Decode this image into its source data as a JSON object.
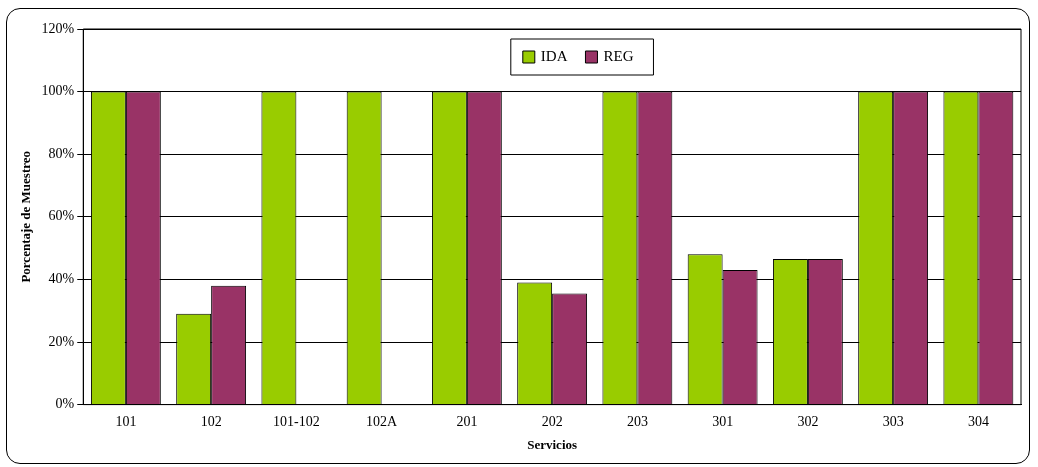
{
  "chart_data": {
    "type": "bar",
    "xlabel": "Servicios",
    "ylabel": "Porcentaje de Muestreo",
    "categories": [
      "101",
      "102",
      "101-102",
      "102A",
      "201",
      "202",
      "203",
      "301",
      "302",
      "303",
      "304"
    ],
    "series": [
      {
        "name": "IDA",
        "color": "#99cc00",
        "values": [
          100,
          29,
          100,
          100,
          100,
          39,
          100,
          48,
          46.5,
          100,
          100
        ]
      },
      {
        "name": "REG",
        "color": "#993366",
        "values": [
          100,
          38,
          null,
          null,
          100,
          35.5,
          100,
          43,
          46.5,
          100,
          100
        ]
      }
    ],
    "ylim": [
      0,
      120
    ],
    "yticks": [
      {
        "value": 0,
        "label": "0%"
      },
      {
        "value": 20,
        "label": "20%"
      },
      {
        "value": 40,
        "label": "40%"
      },
      {
        "value": 60,
        "label": "60%"
      },
      {
        "value": 80,
        "label": "80%"
      },
      {
        "value": 100,
        "label": "100%"
      },
      {
        "value": 120,
        "label": "120%"
      }
    ],
    "grid": "y",
    "legend": "top"
  }
}
